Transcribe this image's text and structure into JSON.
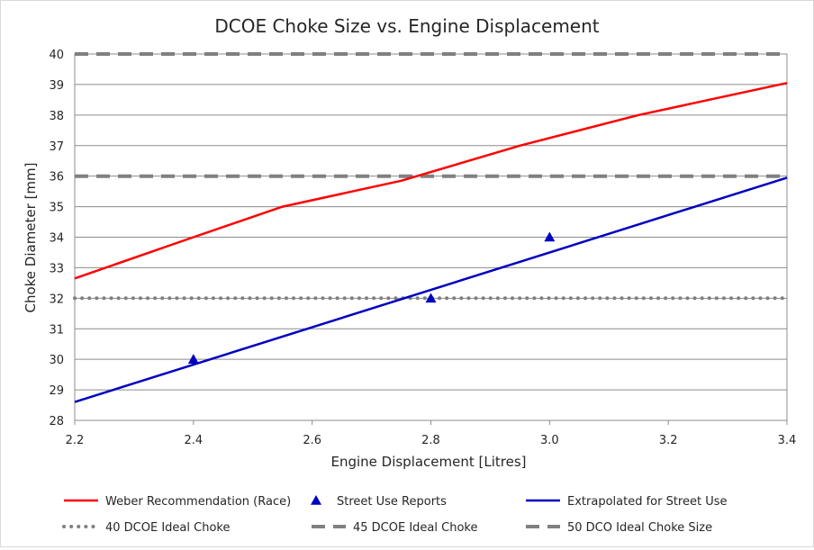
{
  "chart_data": {
    "type": "line",
    "title": "DCOE Choke Size vs. Engine Displacement",
    "xlabel": "Engine Displacement  [Litres]",
    "ylabel": "Choke Diameter [mm]",
    "xlim": [
      2.2,
      3.4
    ],
    "ylim": [
      28,
      40
    ],
    "x_ticks": [
      "2.2",
      "2.4",
      "2.6",
      "2.8",
      "3.0",
      "3.2",
      "3.4"
    ],
    "y_ticks": [
      "28",
      "29",
      "30",
      "31",
      "32",
      "33",
      "34",
      "35",
      "36",
      "37",
      "38",
      "39",
      "40"
    ],
    "grid": "horizontal",
    "legend_position": "bottom",
    "series": [
      {
        "name": "Weber Recommendation (Race)",
        "kind": "line",
        "style": "solid",
        "color": "#ff0000",
        "x": [
          2.2,
          2.4,
          2.55,
          2.75,
          2.95,
          3.15,
          3.4
        ],
        "y": [
          32.65,
          34.0,
          35.0,
          35.85,
          37.0,
          38.0,
          39.05
        ]
      },
      {
        "name": "Street Use Reports",
        "kind": "marker",
        "marker": "triangle",
        "color": "#0000c0",
        "x": [
          2.4,
          2.8,
          3.0
        ],
        "y": [
          30.0,
          32.0,
          34.0
        ]
      },
      {
        "name": "Extrapolated for Street Use",
        "kind": "line",
        "style": "solid",
        "color": "#0000c0",
        "x": [
          2.2,
          3.4
        ],
        "y": [
          28.6,
          35.95
        ]
      },
      {
        "name": "40 DCOE Ideal Choke",
        "kind": "line",
        "style": "dotted",
        "color": "#808080",
        "x": [
          2.2,
          3.4
        ],
        "y": [
          32,
          32
        ]
      },
      {
        "name": "45 DCOE Ideal Choke",
        "kind": "line",
        "style": "dashed",
        "color": "#808080",
        "x": [
          2.2,
          3.4
        ],
        "y": [
          36,
          36
        ]
      },
      {
        "name": "50 DCO Ideal Choke Size",
        "kind": "line",
        "style": "dashed",
        "color": "#808080",
        "x": [
          2.2,
          3.4
        ],
        "y": [
          40,
          40
        ]
      }
    ]
  }
}
